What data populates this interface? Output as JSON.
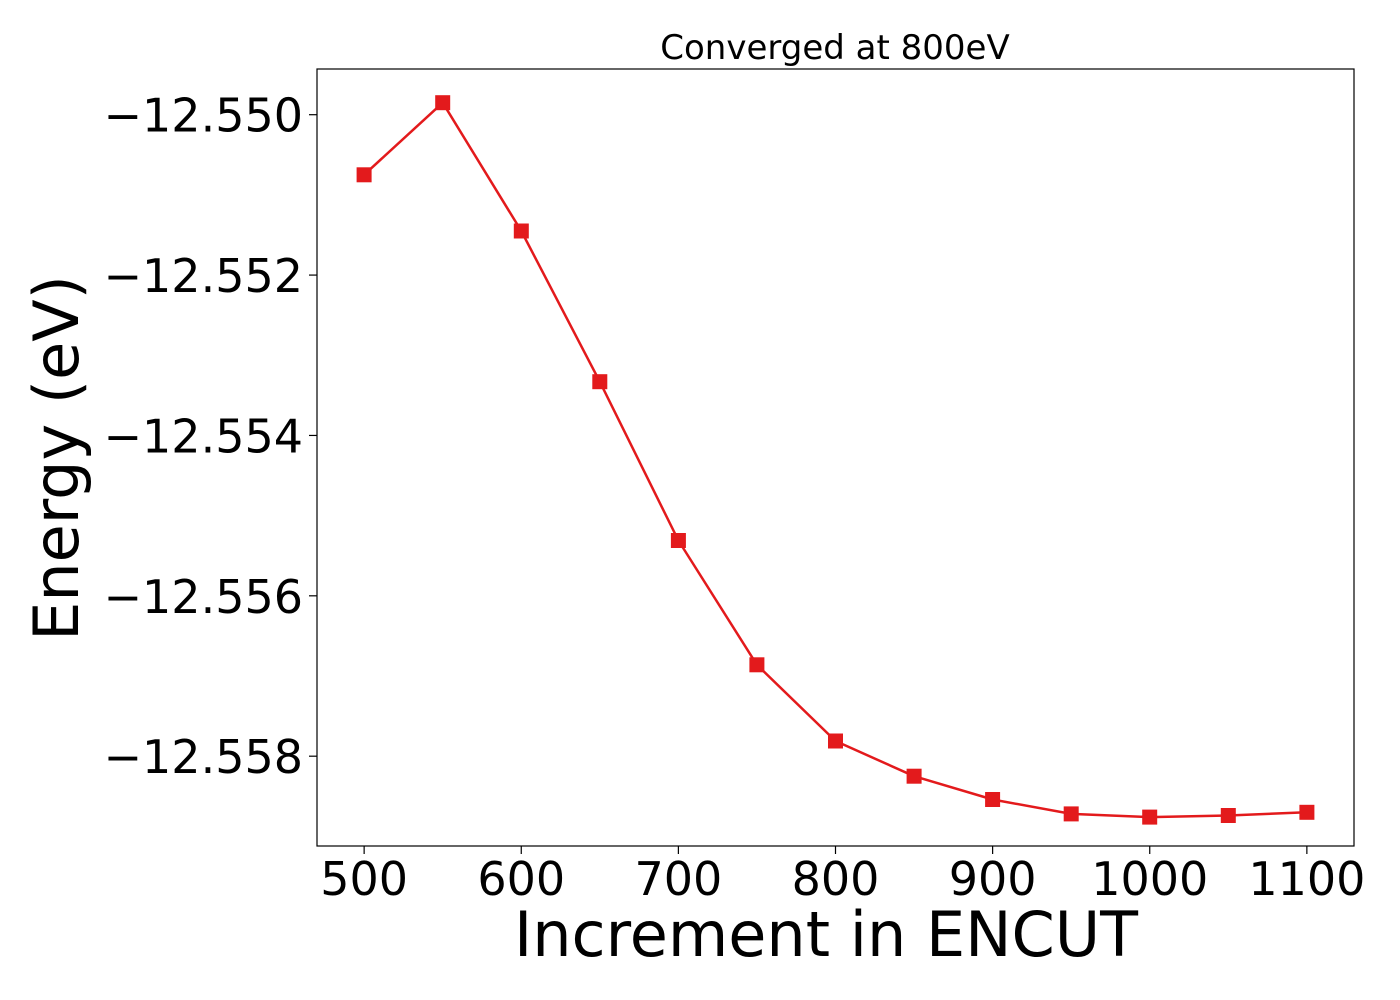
{
  "chart_data": {
    "type": "line",
    "title": "Converged at 800eV",
    "xlabel": "Increment in ENCUT",
    "ylabel": "Energy (eV)",
    "x": [
      500,
      550,
      600,
      650,
      700,
      750,
      800,
      850,
      900,
      950,
      1000,
      1050,
      1100
    ],
    "series": [
      {
        "values": [
          -12.55075,
          -12.54985,
          -12.55145,
          -12.55333,
          -12.55531,
          -12.55686,
          -12.55781,
          -12.55825,
          -12.55854,
          -12.55872,
          -12.55876,
          -12.55874,
          -12.5587
        ],
        "color": "#e31a1c",
        "marker": "square"
      }
    ],
    "xticks": [
      500,
      600,
      700,
      800,
      900,
      1000,
      1100
    ],
    "xtick_labels": [
      "500",
      "600",
      "700",
      "800",
      "900",
      "1000",
      "1100"
    ],
    "yticks": [
      -12.55,
      -12.552,
      -12.554,
      -12.556,
      -12.558
    ],
    "ytick_labels": [
      "−12.550",
      "−12.552",
      "−12.554",
      "−12.556",
      "−12.558"
    ],
    "xlim": [
      470,
      1130
    ],
    "ylim": [
      -12.55912,
      -12.54943
    ],
    "grid": false,
    "legend": false
  }
}
